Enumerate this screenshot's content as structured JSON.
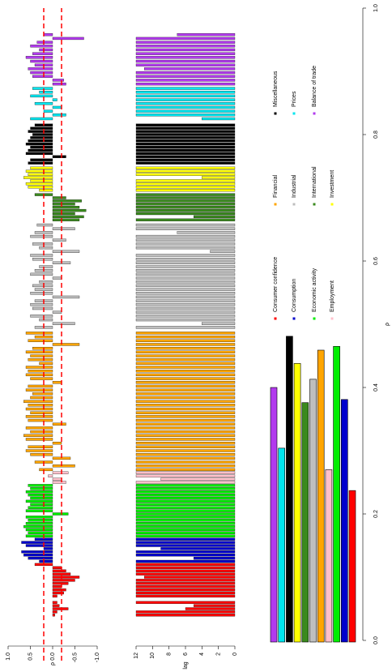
{
  "chart_data": {
    "type": "bar",
    "xlabel": "ρ",
    "ylabel": "ρ",
    "lag_label": "lag",
    "xlim": [
      0,
      1
    ],
    "xticks": [
      {
        "value": 0,
        "label": "0.0"
      },
      0.2,
      0.4,
      0.6,
      0.8,
      {
        "value": 1,
        "label": "1.0"
      }
    ],
    "ylim": [
      -1,
      1
    ],
    "yticks": [
      {
        "value": -1,
        "label": "-1.0"
      },
      -0.5,
      {
        "value": 0,
        "label": "0.0"
      },
      0.5,
      {
        "value": 1,
        "label": "1.0"
      }
    ],
    "lag_lim": [
      0,
      12
    ],
    "lag_ticks": [
      0,
      2,
      4,
      6,
      8,
      10,
      12
    ],
    "thresholds": [
      -0.2,
      0.2
    ],
    "threshold_color": "#ff0000",
    "share_lim": [
      0,
      1
    ],
    "series": [
      {
        "name": "Consumer confidence",
        "color": "#ff0000",
        "share": 0.237,
        "x": [
          0.04,
          0.045,
          0.05,
          0.055,
          0.06,
          0.07,
          0.075,
          0.08,
          0.085,
          0.09,
          0.095,
          0.1,
          0.105,
          0.11,
          0.115,
          0.12
        ],
        "values": [
          -0.05,
          -0.1,
          -0.35,
          -0.15,
          -0.1,
          -0.1,
          -0.25,
          -0.3,
          -0.2,
          -0.35,
          -0.5,
          -0.6,
          -0.4,
          -0.3,
          -0.2,
          0.4
        ],
        "lags": [
          12,
          12,
          6,
          5,
          12,
          12,
          12,
          12,
          12,
          12,
          12,
          11,
          12,
          12,
          12,
          12
        ]
      },
      {
        "name": "Consumption",
        "color": "#0000cd",
        "share": 0.381,
        "x": [
          0.125,
          0.13,
          0.135,
          0.14,
          0.145,
          0.15,
          0.155,
          0.16
        ],
        "values": [
          0.3,
          0.55,
          0.65,
          0.7,
          0.2,
          0.6,
          0.7,
          0.4
        ],
        "lags": [
          12,
          5,
          12,
          12,
          9,
          12,
          12,
          12
        ]
      },
      {
        "name": "Economic activity",
        "color": "#00ee00",
        "share": 0.465,
        "x": [
          0.165,
          0.17,
          0.175,
          0.18,
          0.185,
          0.19,
          0.195,
          0.2,
          0.205,
          0.21,
          0.215,
          0.22,
          0.225,
          0.23,
          0.235,
          0.24,
          0.245
        ],
        "values": [
          0.6,
          0.55,
          0.6,
          0.65,
          0.6,
          0.55,
          0.6,
          -0.35,
          0.6,
          0.55,
          0.5,
          0.6,
          0.5,
          0.55,
          0.6,
          0.5,
          0.55
        ],
        "lags": [
          12,
          12,
          12,
          12,
          12,
          12,
          12,
          12,
          12,
          12,
          12,
          12,
          12,
          12,
          12,
          12,
          12
        ]
      },
      {
        "name": "Employment",
        "color": "#ffc0cb",
        "share": 0.27,
        "x": [
          0.25,
          0.255,
          0.26,
          0.265
        ],
        "values": [
          -0.3,
          -0.2,
          0.1,
          -0.35
        ],
        "lags": [
          12,
          9,
          12,
          12
        ]
      },
      {
        "name": "Financial",
        "color": "#ffa500",
        "share": 0.459,
        "x": [
          0.27,
          0.276,
          0.282,
          0.288,
          0.294,
          0.3,
          0.306,
          0.312,
          0.318,
          0.324,
          0.33,
          0.336,
          0.342,
          0.348,
          0.354,
          0.36,
          0.366,
          0.372,
          0.378,
          0.384,
          0.39,
          0.396,
          0.402,
          0.408,
          0.414,
          0.42,
          0.426,
          0.432,
          0.438,
          0.444,
          0.45,
          0.456,
          0.462,
          0.468,
          0.474,
          0.48,
          0.486
        ],
        "values": [
          0.3,
          -0.5,
          0.4,
          -0.4,
          0.5,
          0.6,
          0.55,
          -0.2,
          0.6,
          0.65,
          0.5,
          0.6,
          -0.3,
          0.55,
          0.6,
          0.5,
          0.6,
          0.55,
          0.65,
          0.5,
          0.45,
          0.6,
          0.55,
          -0.2,
          0.5,
          0.6,
          0.55,
          0.6,
          0.3,
          0.55,
          0.5,
          0.6,
          0.45,
          -0.6,
          0.55,
          0.4,
          0.6
        ],
        "lags": [
          12,
          12,
          12,
          12,
          12,
          12,
          12,
          12,
          12,
          12,
          12,
          12,
          12,
          12,
          12,
          12,
          12,
          12,
          12,
          12,
          12,
          12,
          12,
          12,
          12,
          12,
          12,
          12,
          12,
          12,
          12,
          12,
          12,
          12,
          12,
          12,
          12
        ]
      },
      {
        "name": "Industrial",
        "color": "#bebebe",
        "share": 0.413,
        "x": [
          0.495,
          0.501,
          0.507,
          0.513,
          0.519,
          0.525,
          0.531,
          0.537,
          0.543,
          0.549,
          0.555,
          0.561,
          0.567,
          0.573,
          0.579,
          0.585,
          0.591,
          0.597,
          0.603,
          0.609,
          0.615,
          0.621,
          0.627,
          0.633,
          0.639,
          0.645,
          0.651,
          0.657
        ],
        "values": [
          0.4,
          -0.5,
          0.3,
          0.5,
          -0.2,
          0.45,
          0.5,
          0.4,
          -0.6,
          0.5,
          0.4,
          0.45,
          0.3,
          -0.2,
          0.5,
          0.4,
          0.3,
          -0.4,
          0.45,
          0.5,
          -0.6,
          0.3,
          0.45,
          -0.3,
          0.5,
          0.4,
          -0.5,
          0.35
        ],
        "lags": [
          12,
          4,
          12,
          12,
          12,
          12,
          12,
          12,
          12,
          12,
          12,
          12,
          12,
          12,
          12,
          12,
          12,
          12,
          12,
          12,
          3,
          12,
          12,
          12,
          12,
          7,
          12,
          12
        ]
      },
      {
        "name": "International",
        "color": "#3a8a1e",
        "share": 0.376,
        "x": [
          0.665,
          0.67,
          0.675,
          0.68,
          0.685,
          0.69,
          0.695,
          0.7,
          0.705
        ],
        "values": [
          -0.6,
          -0.7,
          -0.5,
          -0.75,
          -0.6,
          -0.5,
          -0.65,
          -0.3,
          0.4
        ],
        "lags": [
          12,
          5,
          12,
          12,
          12,
          12,
          12,
          12,
          12
        ]
      },
      {
        "name": "Investment",
        "color": "#ffff00",
        "share": 0.438,
        "x": [
          0.712,
          0.717,
          0.722,
          0.727,
          0.732,
          0.737,
          0.742,
          0.747
        ],
        "values": [
          0.3,
          0.55,
          0.6,
          0.5,
          0.65,
          0.55,
          0.6,
          0.5
        ],
        "lags": [
          12,
          12,
          12,
          12,
          4,
          12,
          12,
          12
        ]
      },
      {
        "name": "Miscellaneous",
        "color": "#000000",
        "share": 0.481,
        "x": [
          0.755,
          0.76,
          0.765,
          0.77,
          0.775,
          0.78,
          0.785,
          0.79,
          0.795,
          0.8,
          0.805,
          0.81,
          0.815
        ],
        "values": [
          0.55,
          0.5,
          -0.3,
          0.6,
          0.55,
          0.5,
          0.6,
          0.55,
          0.5,
          0.45,
          0.55,
          0.5,
          0.4
        ],
        "lags": [
          12,
          12,
          12,
          12,
          12,
          12,
          12,
          12,
          12,
          12,
          12,
          12,
          12
        ]
      },
      {
        "name": "Prices",
        "color": "#00e5ee",
        "share": 0.304,
        "x": [
          0.825,
          0.831,
          0.837,
          0.843,
          0.849,
          0.855,
          0.861,
          0.867,
          0.873
        ],
        "values": [
          0.5,
          -0.3,
          0.2,
          -0.2,
          0.4,
          -0.1,
          0.5,
          0.3,
          0.45
        ],
        "lags": [
          4,
          12,
          12,
          12,
          12,
          12,
          12,
          12,
          12
        ]
      },
      {
        "name": "Balance of trade",
        "color": "#b23aee",
        "share": 0.4,
        "x": [
          0.88,
          0.886,
          0.892,
          0.898,
          0.904,
          0.91,
          0.916,
          0.922,
          0.928,
          0.934,
          0.94,
          0.946,
          0.952,
          0.958
        ],
        "values": [
          -0.3,
          -0.25,
          0.45,
          0.5,
          0.55,
          0.4,
          0.5,
          0.6,
          0.45,
          0.3,
          0.5,
          0.35,
          -0.7,
          0.2
        ],
        "lags": [
          12,
          12,
          12,
          12,
          11,
          12,
          12,
          12,
          12,
          12,
          12,
          12,
          12,
          7
        ]
      }
    ]
  }
}
